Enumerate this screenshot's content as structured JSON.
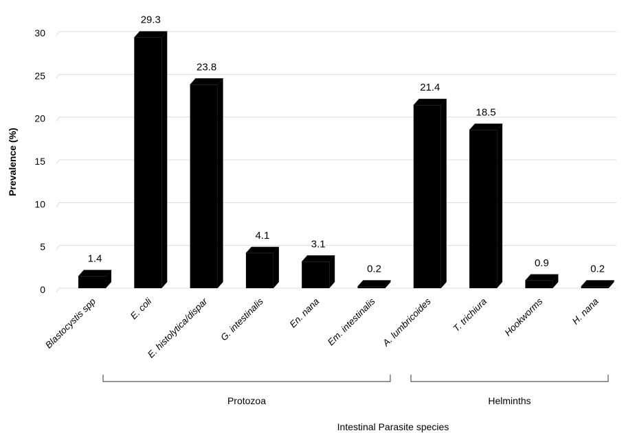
{
  "chart_data": {
    "type": "bar",
    "categories": [
      "Blastocystis spp",
      "E. coli",
      "E. histolytica/dispar",
      "G. intestinalis",
      "En. nana",
      "Em. intestinalis",
      "A. lumbricoides",
      "T. trichiura",
      "Hookworms",
      "H. nana"
    ],
    "values": [
      1.4,
      29.3,
      23.8,
      4.1,
      3.1,
      0.2,
      21.4,
      18.5,
      0.9,
      0.2
    ],
    "data_labels": [
      "1.4",
      "29.3",
      "23.8",
      "4.1",
      "3.1",
      "0.2",
      "21.4",
      "18.5",
      "0.9",
      "0.2"
    ],
    "xlabel": "Intestinal Parasite species",
    "ylabel": "Prevalence (%)",
    "ylim": [
      0,
      30
    ],
    "yticks": [
      "0",
      "5",
      "10",
      "15",
      "20",
      "25",
      "30"
    ],
    "grid": true,
    "bar_color": "#000000",
    "groups": [
      {
        "name": "Protozoa",
        "start": 0,
        "end": 5
      },
      {
        "name": "Helminths",
        "start": 6,
        "end": 9
      }
    ]
  }
}
